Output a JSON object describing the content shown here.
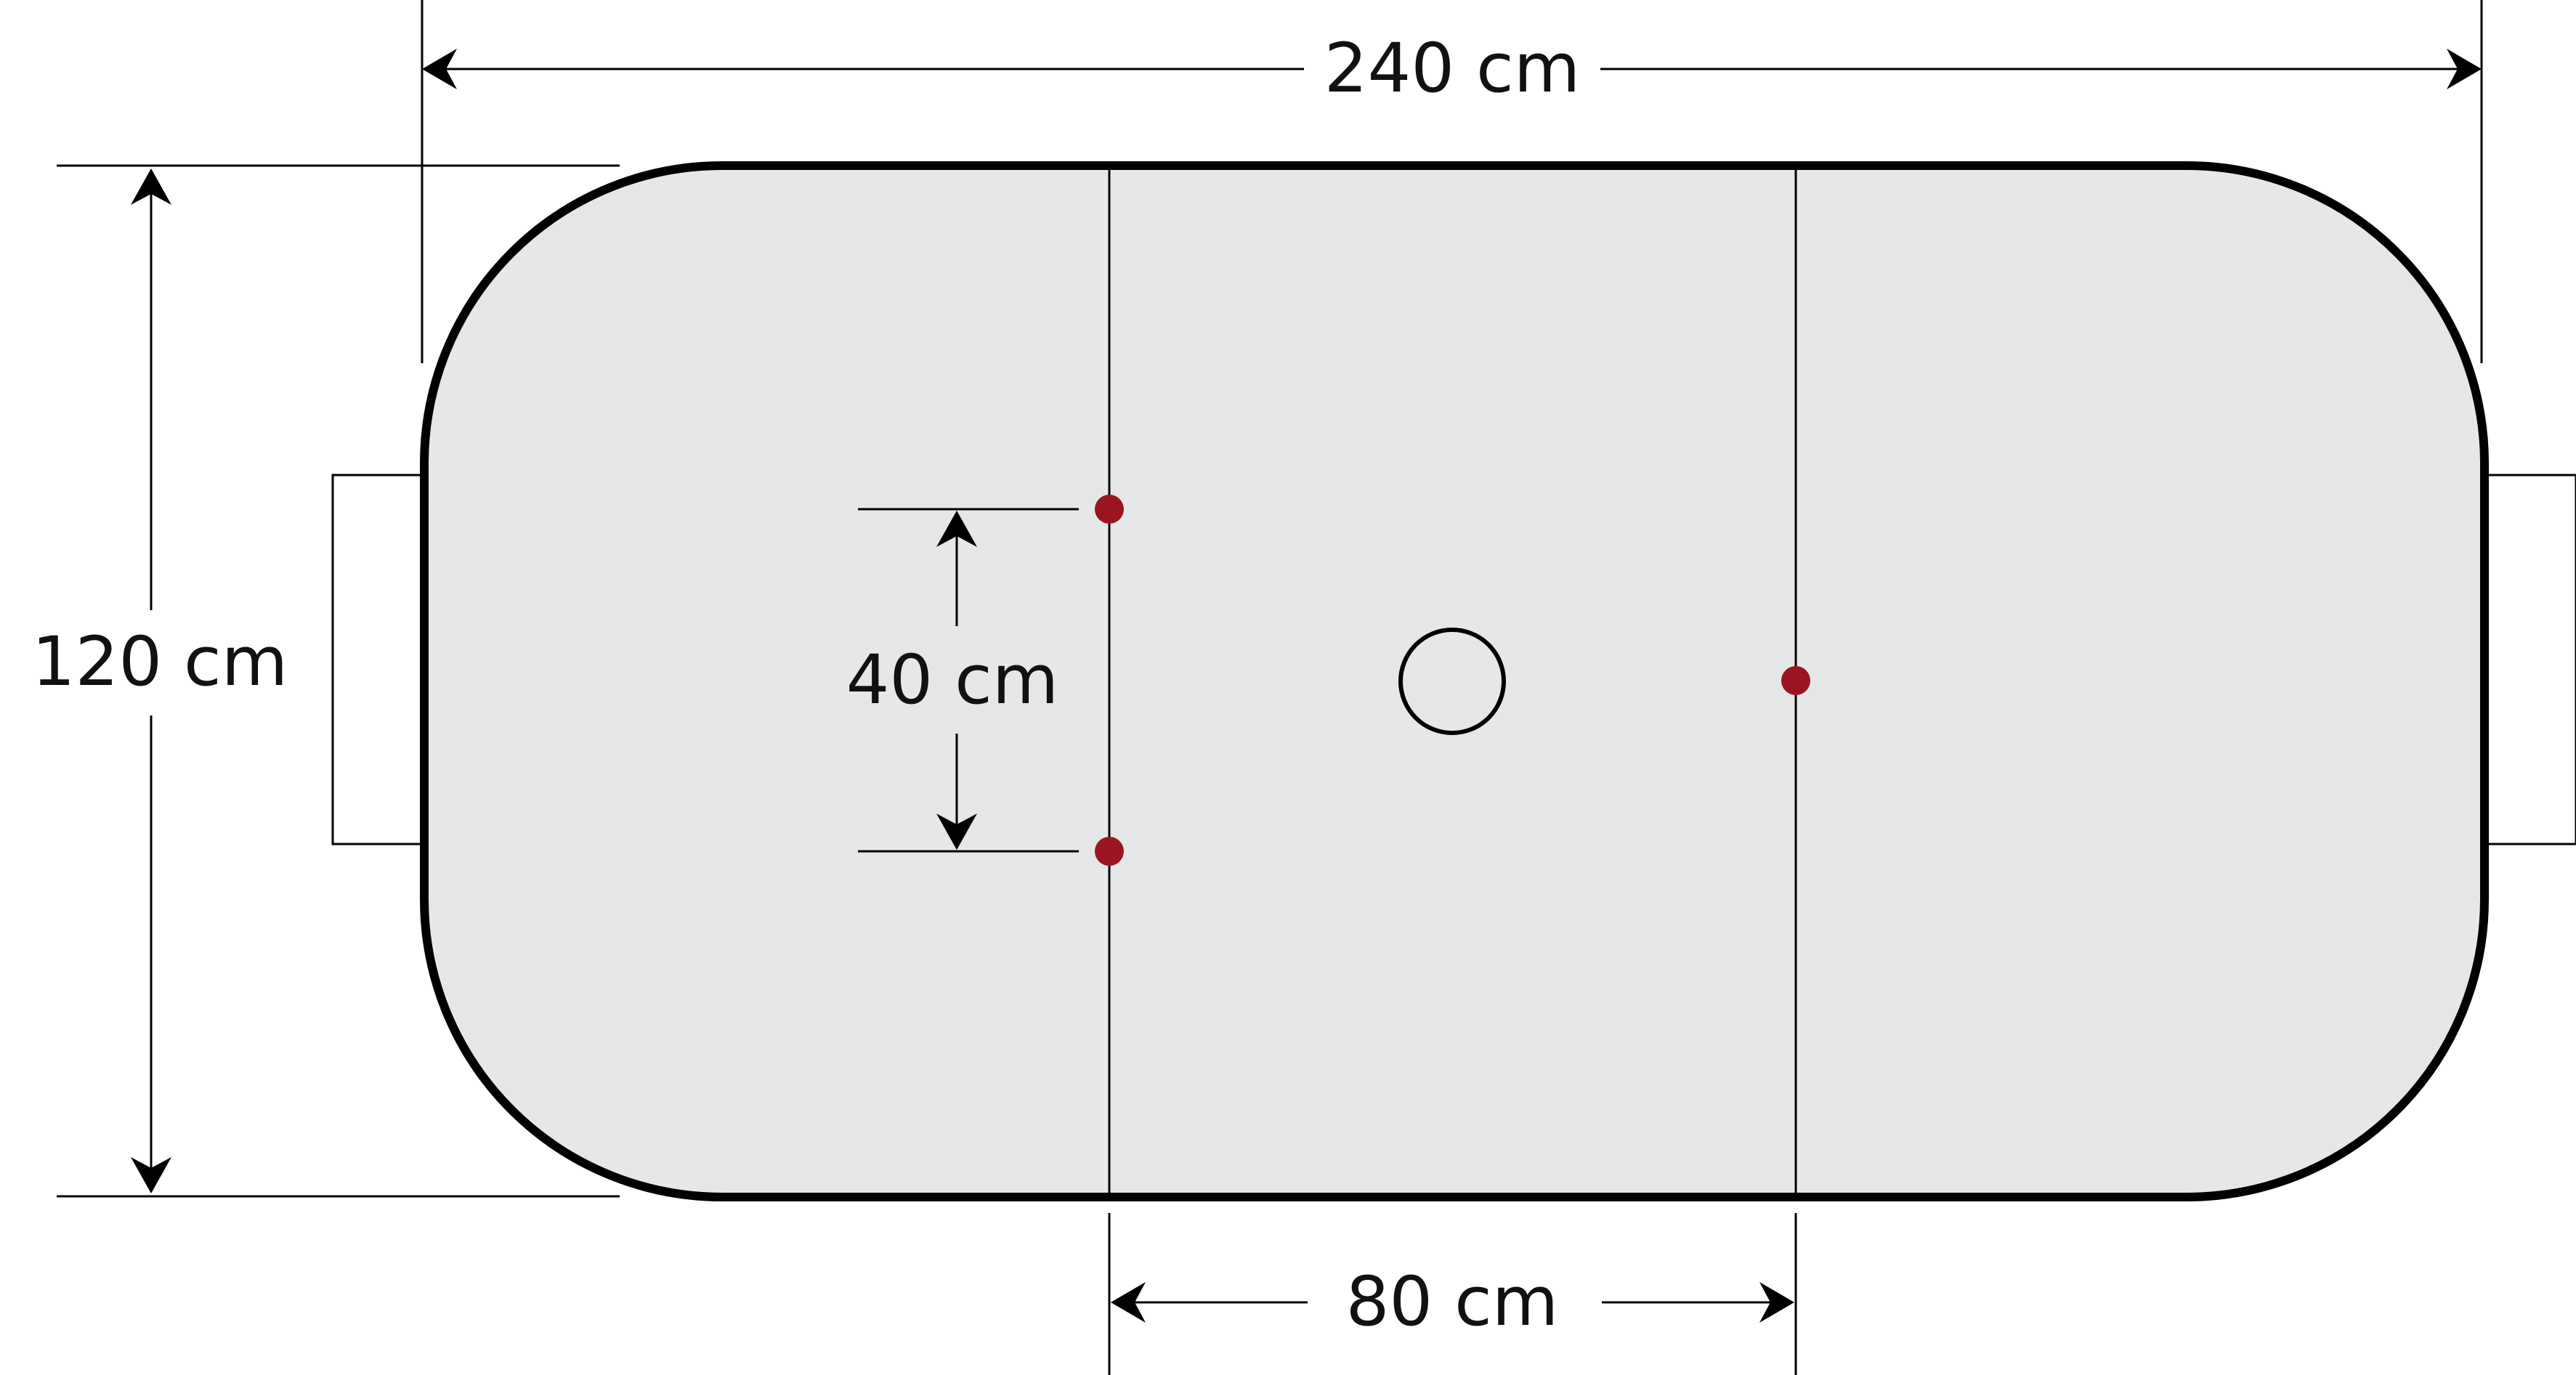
{
  "labels": {
    "width_dimension": "240 cm",
    "height_dimension": "120 cm",
    "spot_spacing_dimension": "40 cm",
    "line_spacing_dimension": "80 cm"
  },
  "colors": {
    "board_fill": "#e6e7e9",
    "board_outline": "#000000",
    "spot": "#9b1520",
    "lines": "#000000"
  }
}
